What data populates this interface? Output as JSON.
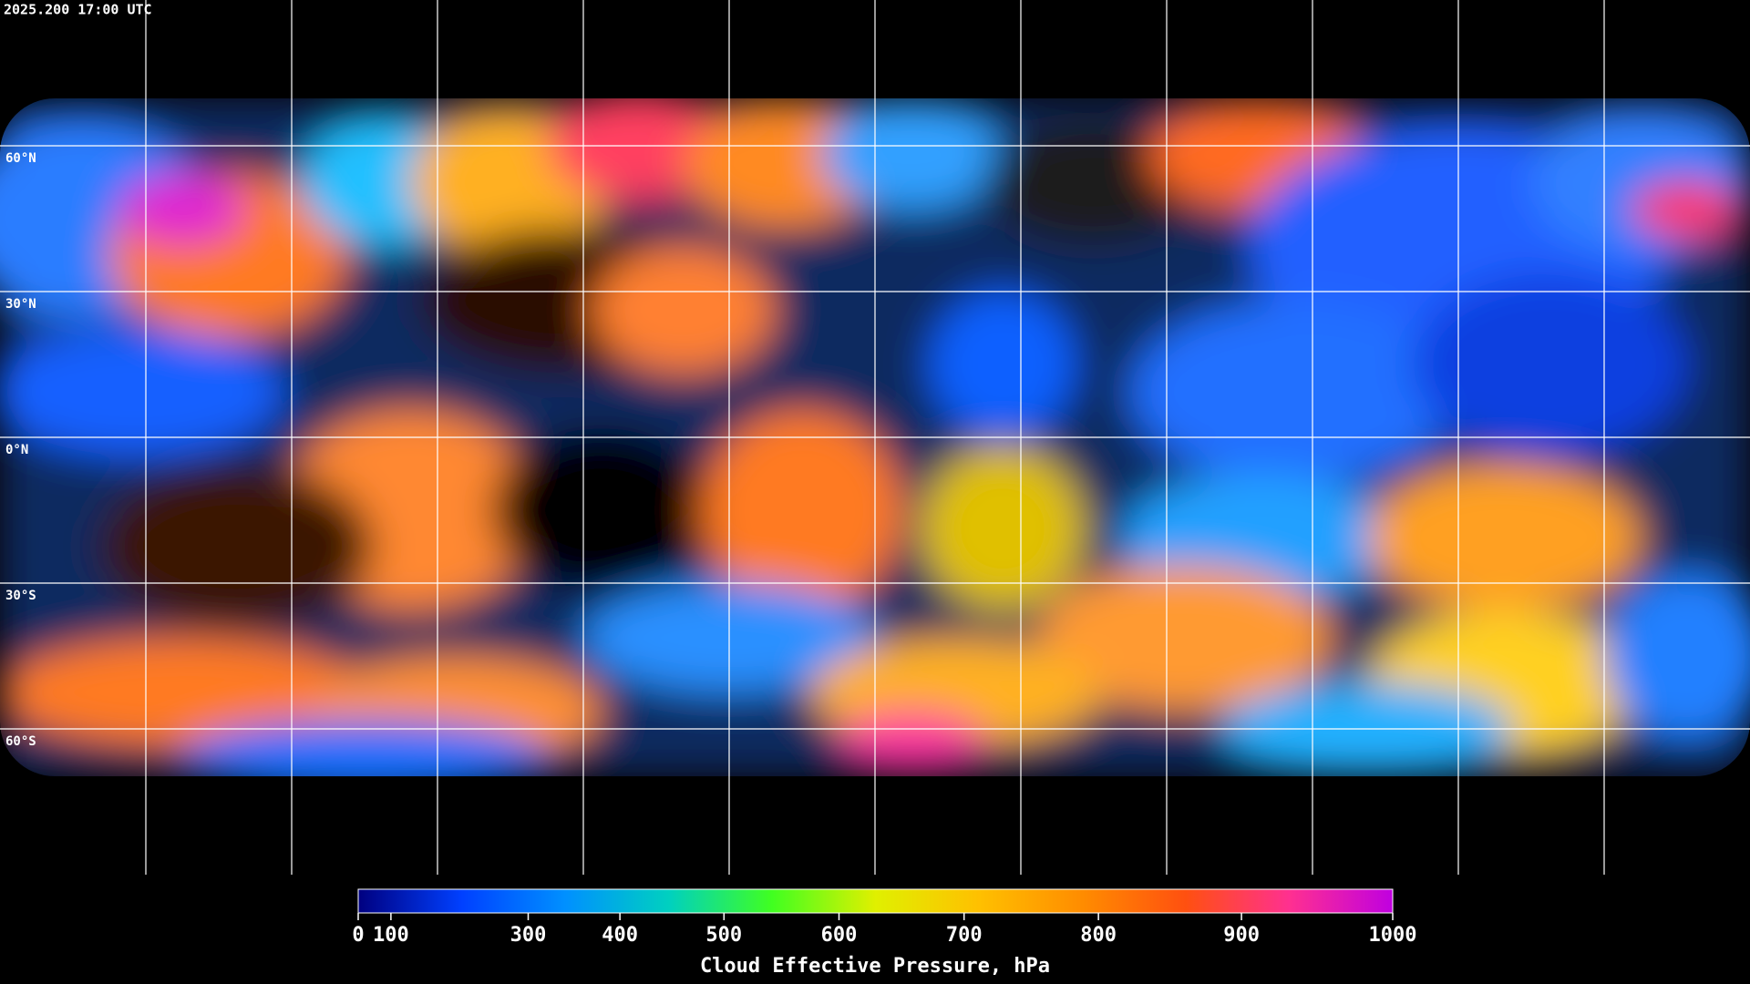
{
  "timestamp": "2025.200 17:00 UTC",
  "graticule": {
    "lats": [
      {
        "value": 60,
        "label": "60°N"
      },
      {
        "value": 30,
        "label": "30°N"
      },
      {
        "value": 0,
        "label": "0°N"
      },
      {
        "value": -30,
        "label": "30°S"
      },
      {
        "value": -60,
        "label": "60°S"
      }
    ],
    "lons": [
      -150,
      -120,
      -90,
      -60,
      -30,
      0,
      30,
      60,
      90,
      120,
      150
    ],
    "latlim": [
      90,
      -90
    ],
    "lonlim": [
      -180,
      180
    ]
  },
  "colorbar": {
    "label": "Cloud Effective Pressure, hPa",
    "lim": [
      0,
      1000
    ],
    "scale": "power",
    "exponent": 1.5,
    "ticks": [
      0,
      100,
      300,
      400,
      500,
      600,
      700,
      800,
      900,
      1000
    ],
    "colors": [
      "#000080",
      "#0040ff",
      "#0090ff",
      "#00d0c0",
      "#40ff20",
      "#e0f000",
      "#ffc000",
      "#ff8c00",
      "#ff5010",
      "#ff3090",
      "#c000e0"
    ]
  }
}
